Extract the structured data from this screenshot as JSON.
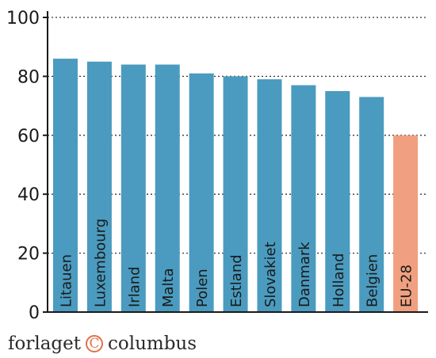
{
  "chart_data": {
    "type": "bar",
    "categories": [
      "Litauen",
      "Luxembourg",
      "Irland",
      "Malta",
      "Polen",
      "Estland",
      "Slovakiet",
      "Danmark",
      "Holland",
      "Belgien",
      "EU-28"
    ],
    "values": [
      86,
      85,
      84,
      84,
      81,
      80,
      79,
      77,
      75,
      73,
      60
    ],
    "ylim": [
      0,
      100
    ],
    "yticks": [
      0,
      20,
      40,
      60,
      80,
      100
    ],
    "grid": "dotted horizontal",
    "colors": {
      "bar": "#4a9bbf",
      "highlight": "#f0a080",
      "highlight_index": 10
    }
  },
  "footer": {
    "text_left": "forlaget",
    "copyright_symbol": "C",
    "text_right": "columbus"
  }
}
